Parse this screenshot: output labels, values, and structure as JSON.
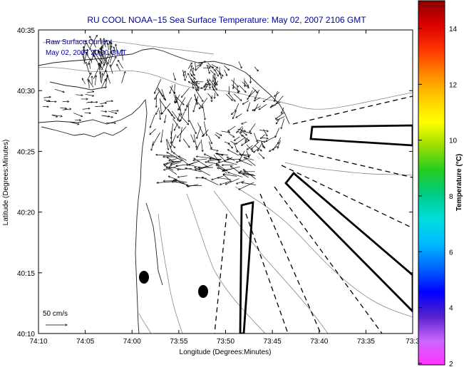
{
  "title": "RU COOL  NOAA−15  Sea Surface Temperature:  May 02, 2007 2106 GMT",
  "legend": {
    "line1": "Raw Surface Current",
    "line2": "May 02, 2007 20:00 GMT"
  },
  "scale": {
    "label": "50 cm/s"
  },
  "x_axis": {
    "label": "Longitude (Degrees:Minutes)",
    "ticks": [
      "74:10",
      "74:05",
      "74:00",
      "73:55",
      "73:50",
      "73:45",
      "73:40",
      "73:35",
      "73:3"
    ]
  },
  "y_axis": {
    "label": "Latitude (Degrees:Minutes)",
    "ticks": [
      "40:35",
      "40:30",
      "40:25",
      "40:20",
      "40:15",
      "40:10"
    ]
  },
  "colorbar": {
    "label": "Temperature (°C)",
    "ticks": [
      "14",
      "12",
      "10",
      "8",
      "6",
      "4",
      "2"
    ],
    "stops": [
      "#ff33ff",
      "#cc66ff",
      "#5522cc",
      "#0000ff",
      "#0066ff",
      "#00bbff",
      "#00dddd",
      "#00cc88",
      "#22cc22",
      "#99dd00",
      "#ffff00",
      "#ffcc00",
      "#ff8800",
      "#ff3300",
      "#dd0000",
      "#880000"
    ]
  },
  "colors": {
    "title": "#000099",
    "frame": "#000000",
    "vectors": "#000000",
    "contours": "#888888"
  }
}
